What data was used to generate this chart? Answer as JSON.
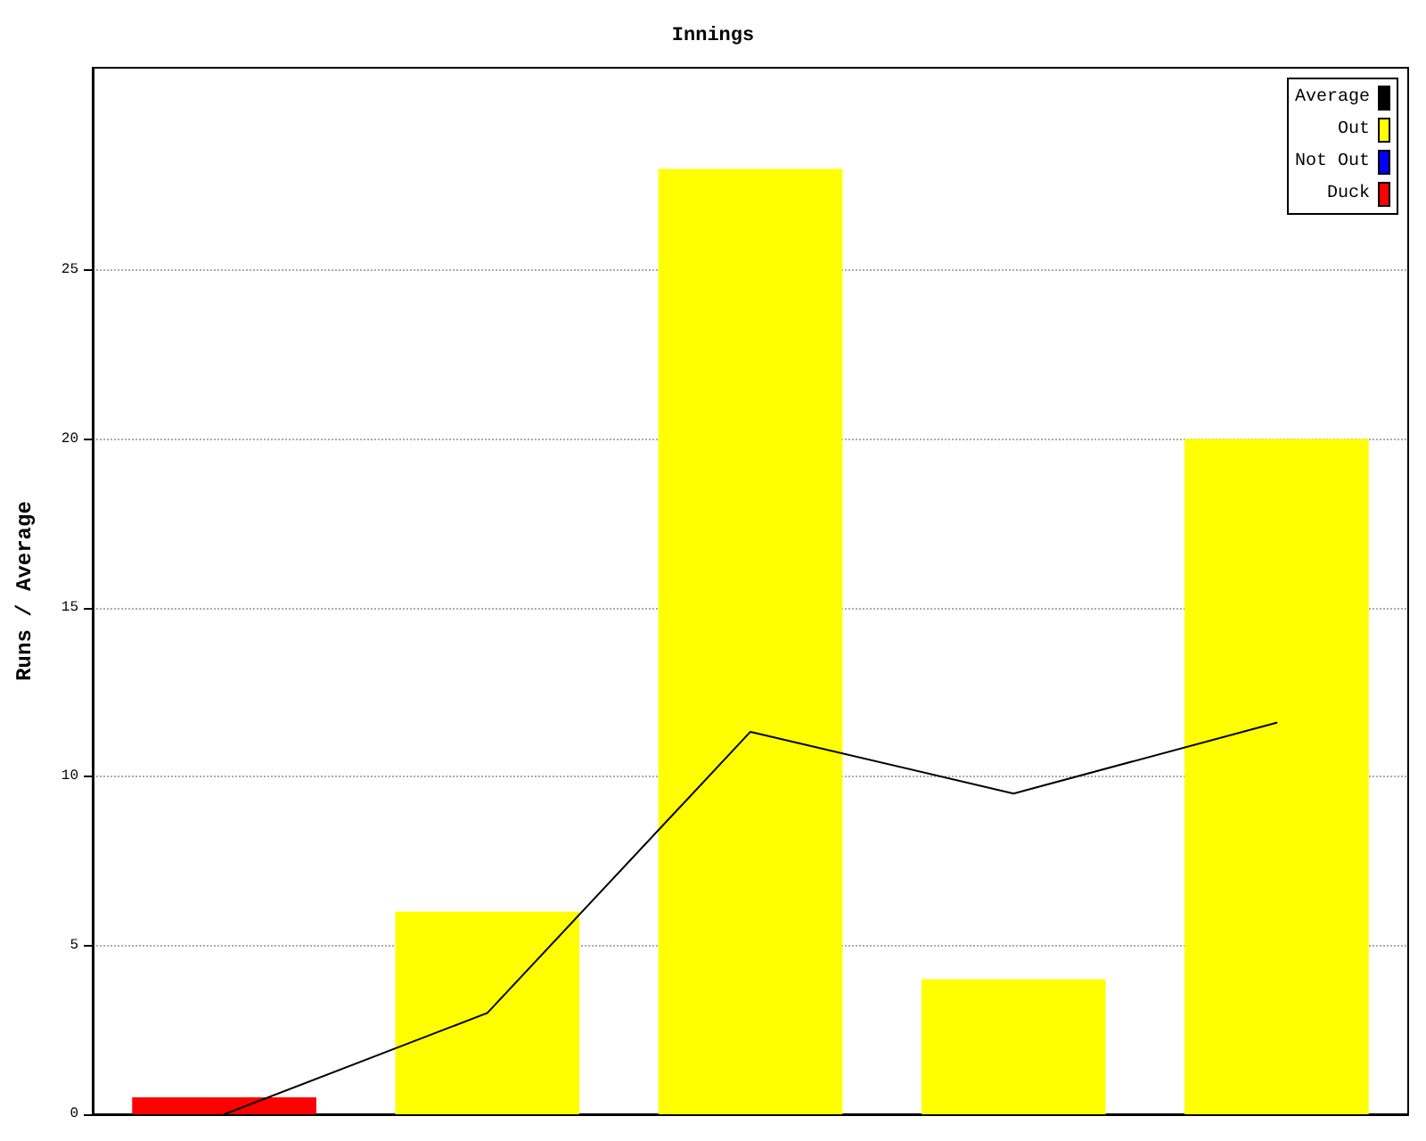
{
  "chart_data": {
    "type": "bar",
    "title": "Innings",
    "ylabel": "Runs / Average",
    "categories": [
      null,
      null,
      null,
      null,
      null
    ],
    "stacked": true,
    "series": [
      {
        "name": "Average",
        "type": "line",
        "color": "#000000",
        "values": [
          0,
          3,
          11.33,
          9.5,
          11.6
        ]
      },
      {
        "name": "Out",
        "color": "#ffff00",
        "values": [
          null,
          6,
          28,
          4,
          20
        ]
      },
      {
        "name": "Not Out",
        "color": "#0000ff",
        "values": [
          null,
          null,
          null,
          null,
          null
        ]
      },
      {
        "name": "Duck",
        "color": "#ff0000",
        "values": [
          0.5,
          null,
          null,
          null,
          null
        ]
      }
    ],
    "ylim": [
      0,
      31
    ],
    "yticks": [
      0,
      5,
      10,
      15,
      20,
      25
    ],
    "grid": "y",
    "legend": "top right",
    "marker": "none",
    "line_style": "solid"
  }
}
